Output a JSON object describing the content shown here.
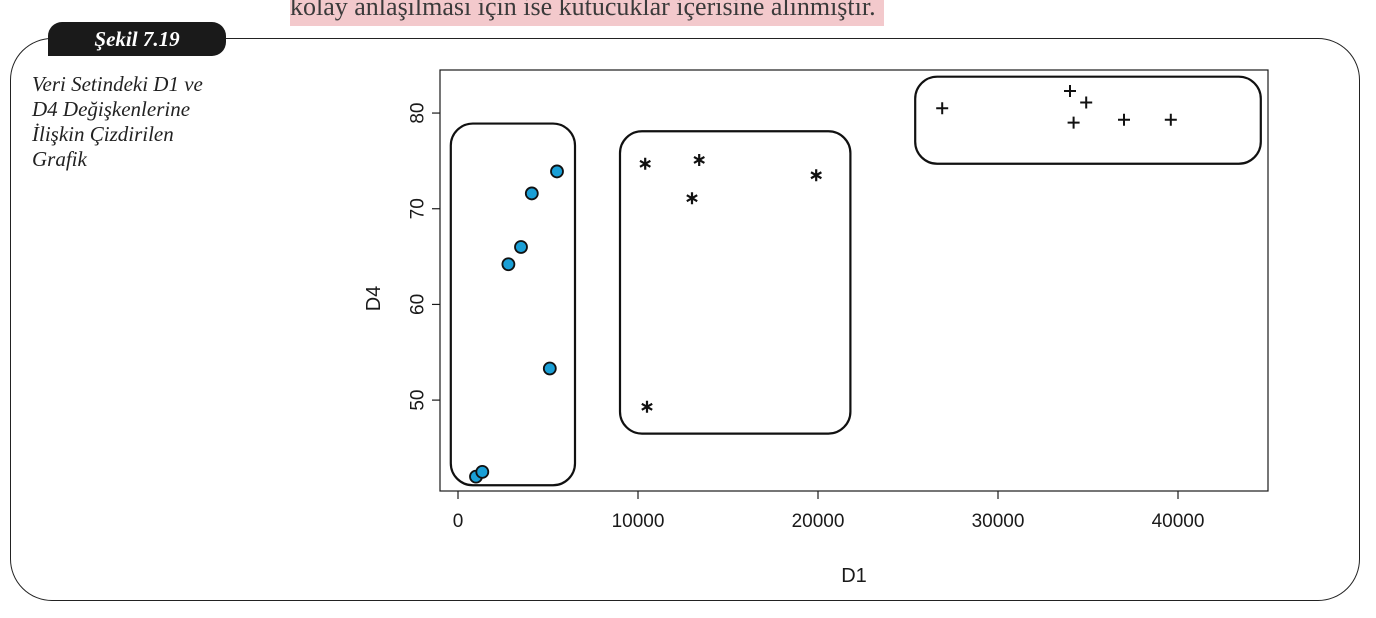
{
  "page": {
    "top_text": "kolay anlaşılması için ise kutucuklar içerisine alınmıştır.",
    "figure_tag": "Şekil 7.19",
    "caption_lines": [
      "Veri Setindeki D1 ve",
      "D4 Değişkenlerine",
      "İlişkin Çizdirilen",
      "Grafik"
    ]
  },
  "chart_data": {
    "type": "scatter",
    "title": "",
    "xlabel": "D1",
    "ylabel": "D4",
    "xlim": [
      -1000,
      45000
    ],
    "ylim": [
      40.5,
      84.5
    ],
    "xticks": [
      0,
      10000,
      20000,
      30000,
      40000
    ],
    "yticks": [
      50,
      60,
      70,
      80
    ],
    "grid": false,
    "series": [
      {
        "marker": "circle",
        "color": "#1a9fd6",
        "points": [
          {
            "x": 1000,
            "y": 42.0
          },
          {
            "x": 1350,
            "y": 42.5
          },
          {
            "x": 2800,
            "y": 64.2
          },
          {
            "x": 3500,
            "y": 66.0
          },
          {
            "x": 4100,
            "y": 71.6
          },
          {
            "x": 5100,
            "y": 53.3
          },
          {
            "x": 5500,
            "y": 73.9
          }
        ]
      },
      {
        "marker": "asterisk",
        "color": "#111111",
        "points": [
          {
            "x": 10400,
            "y": 74.7
          },
          {
            "x": 10500,
            "y": 49.3
          },
          {
            "x": 13000,
            "y": 71.1
          },
          {
            "x": 13400,
            "y": 75.1
          },
          {
            "x": 19900,
            "y": 73.5
          }
        ]
      },
      {
        "marker": "plus",
        "color": "#111111",
        "points": [
          {
            "x": 26900,
            "y": 80.5
          },
          {
            "x": 34000,
            "y": 82.3
          },
          {
            "x": 34200,
            "y": 79.0
          },
          {
            "x": 34900,
            "y": 81.1
          },
          {
            "x": 37000,
            "y": 79.3
          },
          {
            "x": 39600,
            "y": 79.3
          }
        ]
      }
    ],
    "cluster_boxes": [
      {
        "x": [
          -400,
          6500
        ],
        "y": [
          41.1,
          78.9
        ]
      },
      {
        "x": [
          9000,
          21800
        ],
        "y": [
          46.5,
          78.1
        ]
      },
      {
        "x": [
          25400,
          44600
        ],
        "y": [
          74.7,
          83.8
        ]
      }
    ]
  }
}
